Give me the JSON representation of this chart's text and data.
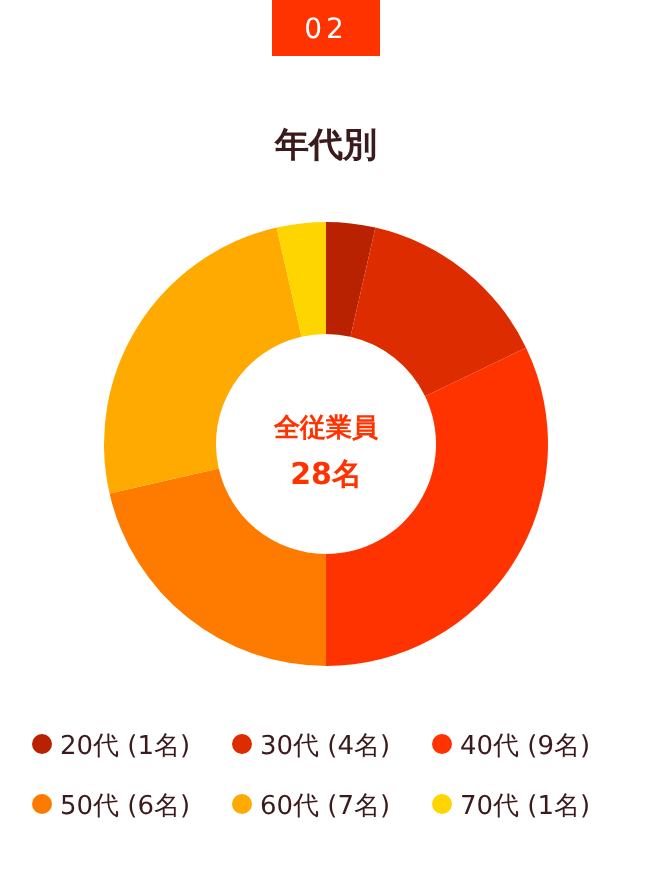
{
  "chart_data": {
    "type": "donut",
    "title": "年代別",
    "categories": [
      "20代 (1名)",
      "30代 (4名)",
      "40代 (9名)",
      "50代 (6名)",
      "60代 (7名)",
      "70代 (1名)"
    ],
    "values": [
      1,
      4,
      9,
      6,
      7,
      1
    ],
    "colors": [
      "#b82200",
      "#dd2c00",
      "#ff3300",
      "#ff7b00",
      "#ffaa00",
      "#ffd500"
    ],
    "annotations": [
      "02",
      "全従業員",
      "28名"
    ],
    "legend": "bottom"
  }
}
